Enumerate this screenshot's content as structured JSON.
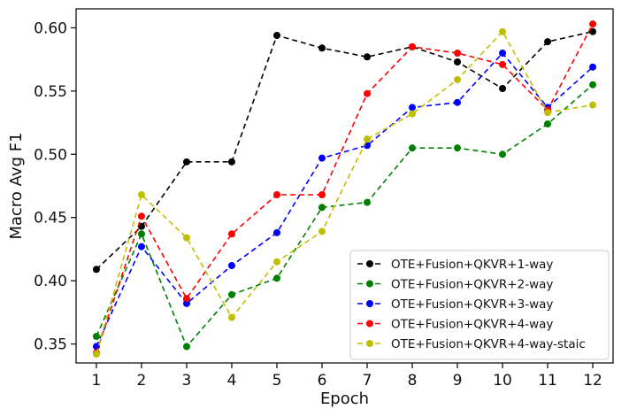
{
  "chart_data": {
    "type": "line",
    "title": "",
    "xlabel": "Epoch",
    "ylabel": "Macro Avg F1",
    "x": [
      1,
      2,
      3,
      4,
      5,
      6,
      7,
      8,
      9,
      10,
      11,
      12
    ],
    "xlim": [
      0.55,
      12.45
    ],
    "ylim": [
      0.335,
      0.615
    ],
    "yticks": [
      "0.35",
      "0.40",
      "0.45",
      "0.50",
      "0.55",
      "0.60"
    ],
    "ytick_values": [
      0.35,
      0.4,
      0.45,
      0.5,
      0.55,
      0.6
    ],
    "xticks": [
      "1",
      "2",
      "3",
      "4",
      "5",
      "6",
      "7",
      "8",
      "9",
      "10",
      "11",
      "12"
    ],
    "grid": false,
    "legend_position": "bottom-right",
    "series": [
      {
        "name": "OTE+Fusion+QKVR+1-way",
        "color": "#000000",
        "values": [
          0.409,
          0.443,
          0.494,
          0.494,
          0.594,
          0.584,
          0.577,
          0.585,
          0.573,
          0.552,
          0.589,
          0.597
        ]
      },
      {
        "name": "OTE+Fusion+QKVR+2-way",
        "color": "#008000",
        "values": [
          0.356,
          0.437,
          0.348,
          0.389,
          0.402,
          0.458,
          0.462,
          0.505,
          0.505,
          0.5,
          0.524,
          0.555
        ]
      },
      {
        "name": "OTE+Fusion+QKVR+3-way",
        "color": "#0000ff",
        "values": [
          0.348,
          0.427,
          0.382,
          0.412,
          0.438,
          0.497,
          0.507,
          0.537,
          0.541,
          0.58,
          0.537,
          0.569
        ]
      },
      {
        "name": "OTE+Fusion+QKVR+4-way",
        "color": "#ff0000",
        "values": [
          0.343,
          0.451,
          0.386,
          0.437,
          0.468,
          0.468,
          0.548,
          0.585,
          0.58,
          0.571,
          0.535,
          0.603
        ]
      },
      {
        "name": "OTE+Fusion+QKVR+4-way-staic",
        "color": "#bfbf00",
        "values": [
          0.342,
          0.468,
          0.434,
          0.371,
          0.415,
          0.439,
          0.512,
          0.532,
          0.559,
          0.597,
          0.533,
          0.539
        ]
      }
    ]
  }
}
